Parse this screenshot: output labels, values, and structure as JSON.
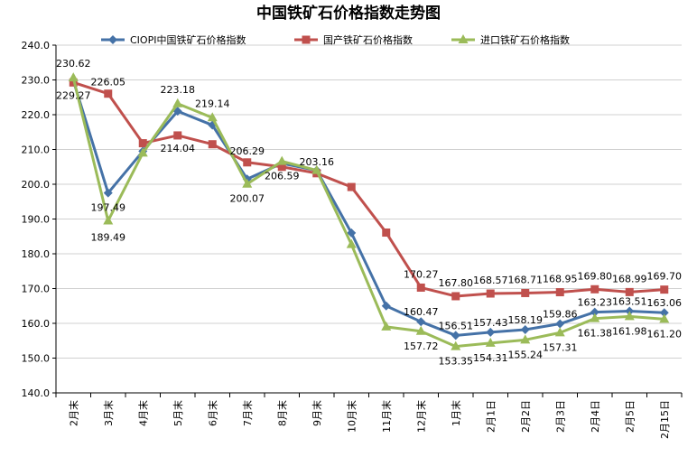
{
  "chart_data": {
    "type": "line",
    "title": "中国铁矿石价格指数走势图",
    "categories": [
      "2月末",
      "3月末",
      "4月末",
      "5月末",
      "6月末",
      "7月末",
      "8月末",
      "9月末",
      "10月末",
      "11月末",
      "12月末",
      "1月末",
      "2月1日",
      "2月2日",
      "2月3日",
      "2月4日",
      "2月5日",
      "2月15日"
    ],
    "ylim": [
      140,
      240
    ],
    "yticks": [
      "140.0",
      "150.0",
      "160.0",
      "170.0",
      "180.0",
      "190.0",
      "200.0",
      "210.0",
      "220.0",
      "230.0",
      "240.0"
    ],
    "legend_position": "top",
    "series": [
      {
        "name": "CIOPI中国铁矿石价格指数",
        "color": "#4572A7",
        "marker": "diamond",
        "values": [
          229.8,
          197.49,
          209.5,
          221.0,
          217.0,
          201.5,
          206.0,
          204.0,
          186.0,
          165.0,
          160.47,
          156.51,
          157.43,
          158.19,
          159.86,
          163.23,
          163.51,
          163.06
        ],
        "labels": [
          null,
          "197.49",
          null,
          null,
          null,
          null,
          null,
          null,
          null,
          null,
          "160.47",
          "156.51",
          "157.43",
          "158.19",
          "159.86",
          "163.23",
          "163.51",
          "163.06"
        ]
      },
      {
        "name": "国产铁矿石价格指数",
        "color": "#C0504D",
        "marker": "square",
        "values": [
          229.27,
          226.05,
          211.8,
          214.04,
          211.5,
          206.29,
          205.0,
          203.16,
          199.2,
          186.1,
          170.27,
          167.8,
          168.57,
          168.71,
          168.95,
          169.8,
          168.99,
          169.7
        ],
        "labels": [
          "229.27",
          "226.05",
          null,
          "214.04",
          null,
          "206.29",
          null,
          "203.16",
          null,
          null,
          "170.27",
          "167.80",
          "168.57",
          "168.71",
          "168.95",
          "169.80",
          "168.99",
          "169.70"
        ]
      },
      {
        "name": "进口铁矿石价格指数",
        "color": "#9BBB59",
        "marker": "triangle",
        "values": [
          230.62,
          189.49,
          209.0,
          223.18,
          219.14,
          200.07,
          206.59,
          204.0,
          182.7,
          159.0,
          157.72,
          153.35,
          154.31,
          155.24,
          157.31,
          161.38,
          161.98,
          161.2
        ],
        "labels": [
          "230.62",
          "189.49",
          null,
          "223.18",
          "219.14",
          "200.07",
          "206.59",
          null,
          null,
          null,
          "157.72",
          "153.35",
          "154.31",
          "155.24",
          "157.31",
          "161.38",
          "161.98",
          "161.20"
        ]
      }
    ]
  }
}
